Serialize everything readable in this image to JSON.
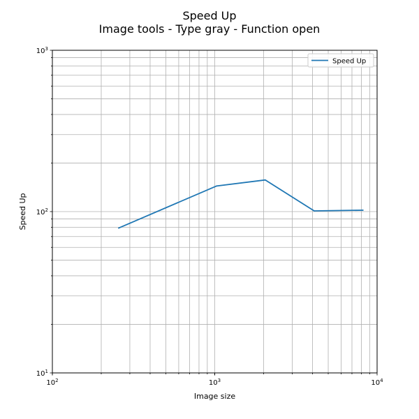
{
  "chart_data": {
    "type": "line",
    "title": "Speed Up",
    "subtitle": "Image tools - Type gray - Function open",
    "xlabel": "Image size",
    "ylabel": "Speed Up",
    "xscale": "log",
    "yscale": "log",
    "xlim": [
      100,
      10000
    ],
    "ylim": [
      10,
      1000
    ],
    "x_tick_labels": [
      {
        "base": "10",
        "exp": "2"
      },
      {
        "base": "10",
        "exp": "3"
      },
      {
        "base": "10",
        "exp": "4"
      }
    ],
    "y_tick_labels": [
      {
        "base": "10",
        "exp": "1"
      },
      {
        "base": "10",
        "exp": "2"
      },
      {
        "base": "10",
        "exp": "3"
      }
    ],
    "grid": "major and minor",
    "legend": {
      "position": "top-right"
    },
    "series": [
      {
        "name": "Speed Up",
        "color": "#1f77b4",
        "x": [
          256,
          1024,
          2048,
          4096,
          8192
        ],
        "y": [
          79,
          144,
          157,
          101,
          102
        ]
      }
    ]
  }
}
